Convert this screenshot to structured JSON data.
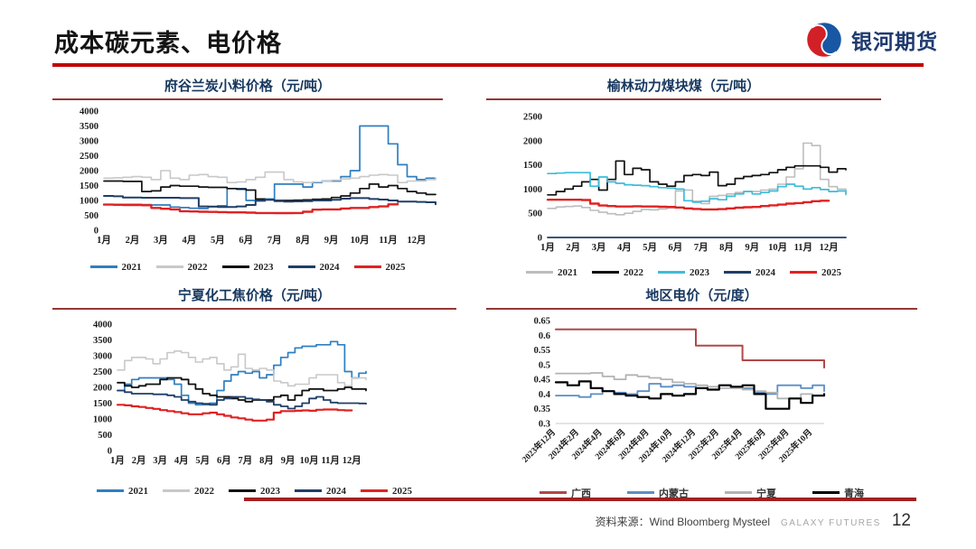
{
  "header": {
    "title": "成本碳元素、电价格"
  },
  "logo": {
    "text": "银河期货",
    "blue": "#1857a4",
    "red": "#d22027"
  },
  "footer": {
    "source_label": "资料来源：Wind Bloomberg Mysteel",
    "brand": "GALAXY FUTURES",
    "page_number": "12"
  },
  "chart_data": [
    {
      "type": "line",
      "title": "府谷兰炭小料价格（元/吨）",
      "ylabel": "元/吨",
      "ylim": [
        0,
        4000
      ],
      "ytick_values": [
        4000,
        3500,
        3000,
        2500,
        2000,
        1500,
        1000,
        500,
        0
      ],
      "ytick_labels": [
        "4000",
        "3500",
        "3000",
        "2500",
        "2000",
        "1500",
        "1000",
        "500",
        "0"
      ],
      "x_labels": [
        "1月",
        "2月",
        "3月",
        "4月",
        "5月",
        "6月",
        "7月",
        "8月",
        "9月",
        "10月",
        "11月",
        "12月"
      ],
      "x_count": 36,
      "baseline_color": null,
      "legend_position": "bottom",
      "grid": false,
      "series": [
        {
          "name": "2021",
          "color": "#2e7fc1",
          "width": 1.7,
          "values": [
            870,
            870,
            870,
            870,
            860,
            850,
            850,
            780,
            760,
            740,
            730,
            800,
            820,
            1400,
            1400,
            1000,
            980,
            1050,
            1550,
            1550,
            1550,
            1450,
            1600,
            1650,
            1650,
            1800,
            2000,
            3500,
            3500,
            3500,
            2900,
            2200,
            1800,
            1700,
            1750,
            1750
          ]
        },
        {
          "name": "2022",
          "color": "#c8c8c8",
          "width": 1.6,
          "values": [
            1750,
            1760,
            1780,
            1800,
            1780,
            1700,
            2000,
            1750,
            1700,
            1850,
            1870,
            1800,
            1780,
            1600,
            1620,
            1700,
            1780,
            1950,
            1950,
            1700,
            1620,
            1600,
            1620,
            1650,
            1680,
            1720,
            1750,
            1800,
            1850,
            1870,
            1850,
            1600,
            1650,
            1650,
            1700,
            1750
          ]
        },
        {
          "name": "2023",
          "color": "#111111",
          "width": 1.7,
          "values": [
            1650,
            1650,
            1640,
            1640,
            1300,
            1320,
            1450,
            1500,
            1480,
            1480,
            1450,
            1440,
            1440,
            1400,
            1380,
            1350,
            1050,
            1020,
            1000,
            1000,
            1010,
            1020,
            1040,
            1050,
            1100,
            1150,
            1250,
            1400,
            1550,
            1450,
            1500,
            1400,
            1300,
            1250,
            1200,
            1200
          ]
        },
        {
          "name": "2024",
          "color": "#1f3e66",
          "width": 2.0,
          "values": [
            1150,
            1140,
            1100,
            1100,
            1090,
            1090,
            1090,
            1090,
            1080,
            1080,
            800,
            790,
            780,
            780,
            800,
            850,
            1000,
            1020,
            980,
            960,
            970,
            980,
            1000,
            1000,
            1020,
            1060,
            1080,
            1080,
            1050,
            1030,
            1000,
            960,
            960,
            950,
            940,
            870
          ]
        },
        {
          "name": "2025",
          "color": "#e02222",
          "width": 2.4,
          "values": [
            860,
            855,
            850,
            850,
            840,
            750,
            720,
            700,
            640,
            630,
            620,
            615,
            610,
            600,
            600,
            590,
            580,
            580,
            575,
            575,
            580,
            620,
            690,
            700,
            700,
            730,
            750,
            750,
            780,
            800,
            870,
            890
          ]
        }
      ]
    },
    {
      "type": "line",
      "title": "榆林动力煤块煤（元/吨）",
      "ylabel": "元/吨",
      "ylim": [
        0,
        2500
      ],
      "ytick_values": [
        2500,
        2000,
        1500,
        1000,
        500,
        0
      ],
      "ytick_labels": [
        "2500",
        "2000",
        "1500",
        "1000",
        "500",
        "0"
      ],
      "x_labels": [
        "1月",
        "2月",
        "3月",
        "4月",
        "5月",
        "6月",
        "7月",
        "8月",
        "9月",
        "10月",
        "11月",
        "12月"
      ],
      "x_count": 36,
      "baseline_color": null,
      "legend_position": "bottom",
      "grid": false,
      "series": [
        {
          "name": "2021",
          "color": "#bdbdbd",
          "width": 1.6,
          "values": [
            600,
            630,
            640,
            650,
            620,
            560,
            520,
            490,
            470,
            500,
            540,
            580,
            570,
            590,
            610,
            960,
            980,
            750,
            700,
            850,
            870,
            900,
            930,
            950,
            950,
            980,
            1000,
            1100,
            1250,
            1420,
            1950,
            1900,
            1200,
            1050,
            1000,
            880
          ]
        },
        {
          "name": "2022",
          "color": "#111111",
          "width": 1.7,
          "values": [
            880,
            950,
            1000,
            1060,
            1150,
            1200,
            980,
            1200,
            1580,
            1300,
            1430,
            1400,
            1150,
            1100,
            1060,
            1150,
            1280,
            1300,
            1280,
            1350,
            1070,
            1100,
            1220,
            1260,
            1280,
            1300,
            1340,
            1400,
            1450,
            1480,
            1480,
            1480,
            1450,
            1350,
            1420,
            1400
          ]
        },
        {
          "name": "2023",
          "color": "#3fbcd9",
          "width": 1.7,
          "values": [
            1320,
            1330,
            1340,
            1340,
            1340,
            1060,
            1250,
            1150,
            1120,
            1090,
            1080,
            1070,
            1050,
            1030,
            1020,
            1000,
            760,
            730,
            750,
            800,
            780,
            850,
            900,
            950,
            900,
            930,
            960,
            1050,
            1100,
            1060,
            1000,
            1030,
            990,
            950,
            960,
            900
          ]
        },
        {
          "name": "2024",
          "color": "#1f3e66",
          "width": 1.8,
          "values": [
            0,
            0,
            0,
            0,
            0,
            0,
            0,
            0,
            0,
            0,
            0,
            0,
            0,
            0,
            0,
            0,
            0,
            0,
            0,
            0,
            0,
            0,
            0,
            0,
            0,
            0,
            0,
            0,
            0,
            0,
            0,
            0,
            0,
            0,
            0,
            0
          ]
        },
        {
          "name": "2025",
          "color": "#e02222",
          "width": 2.4,
          "values": [
            780,
            780,
            780,
            780,
            775,
            700,
            660,
            650,
            640,
            640,
            645,
            640,
            640,
            635,
            630,
            620,
            600,
            590,
            580,
            580,
            585,
            600,
            615,
            625,
            630,
            650,
            665,
            680,
            700,
            710,
            730,
            750,
            760,
            760
          ]
        }
      ]
    },
    {
      "type": "line",
      "title": "宁夏化工焦价格（元/吨）",
      "ylabel": "元/吨",
      "ylim": [
        0,
        4000
      ],
      "ytick_values": [
        4000,
        3500,
        3000,
        2500,
        2000,
        1500,
        1000,
        500,
        0
      ],
      "ytick_labels": [
        "4000",
        "3500",
        "3000",
        "2500",
        "2000",
        "1500",
        "1000",
        "500",
        "0"
      ],
      "x_labels": [
        "1月",
        "2月",
        "3月",
        "4月",
        "5月",
        "6月",
        "7月",
        "8月",
        "9月",
        "10月",
        "11月",
        "12月"
      ],
      "x_count": 36,
      "baseline_color": null,
      "legend_position": "bottom",
      "grid": false,
      "series": [
        {
          "name": "2021",
          "color": "#2e7fc1",
          "width": 1.7,
          "values": [
            1900,
            2100,
            2250,
            2300,
            2300,
            2300,
            2300,
            2250,
            2100,
            1750,
            1500,
            1450,
            1450,
            1500,
            1900,
            2200,
            2400,
            2500,
            2450,
            2500,
            2300,
            2400,
            2700,
            2950,
            3100,
            3250,
            3300,
            3300,
            3350,
            3350,
            3450,
            3350,
            2500,
            2300,
            2450,
            2500
          ]
        },
        {
          "name": "2022",
          "color": "#c8c8c8",
          "width": 1.6,
          "values": [
            2550,
            2850,
            2950,
            2950,
            2900,
            2750,
            2900,
            3100,
            3150,
            3100,
            2950,
            2800,
            2900,
            2950,
            2750,
            2550,
            2650,
            3050,
            2600,
            2550,
            2600,
            2550,
            2200,
            2150,
            2050,
            2100,
            2100,
            2300,
            2400,
            2400,
            2400,
            2150,
            2050,
            2300,
            2300,
            2250
          ]
        },
        {
          "name": "2023",
          "color": "#111111",
          "width": 1.8,
          "values": [
            2150,
            2050,
            2000,
            2050,
            2100,
            2100,
            2250,
            2300,
            2300,
            2250,
            2100,
            1950,
            1800,
            1750,
            1700,
            1700,
            1650,
            1600,
            1550,
            1600,
            1600,
            1600,
            1700,
            1750,
            1600,
            1750,
            1900,
            1950,
            1950,
            1900,
            1900,
            1950,
            2000,
            1950,
            1950,
            1900
          ]
        },
        {
          "name": "2024",
          "color": "#1f3e66",
          "width": 1.8,
          "values": [
            1900,
            1850,
            1800,
            1800,
            1800,
            1780,
            1780,
            1750,
            1700,
            1600,
            1550,
            1500,
            1480,
            1450,
            1600,
            1650,
            1700,
            1700,
            1650,
            1620,
            1600,
            1550,
            1450,
            1400,
            1330,
            1400,
            1500,
            1650,
            1700,
            1600,
            1520,
            1500,
            1500,
            1500,
            1490,
            1480
          ]
        },
        {
          "name": "2025",
          "color": "#e02222",
          "width": 2.2,
          "values": [
            1450,
            1430,
            1400,
            1380,
            1350,
            1320,
            1280,
            1250,
            1220,
            1180,
            1150,
            1150,
            1180,
            1200,
            1150,
            1100,
            1050,
            1020,
            980,
            950,
            950,
            980,
            1200,
            1250,
            1250,
            1260,
            1270,
            1260,
            1290,
            1300,
            1300,
            1280,
            1270,
            1270
          ]
        }
      ]
    },
    {
      "type": "line",
      "title": "地区电价（元/度）",
      "ylabel": "元/度",
      "ylim": [
        0.3,
        0.65
      ],
      "ytick_values": [
        0.65,
        0.6,
        0.55,
        0.5,
        0.45,
        0.4,
        0.35,
        0.3
      ],
      "ytick_labels": [
        "0.65",
        "0.6",
        "0.55",
        "0.5",
        "0.45",
        "0.4",
        "0.35",
        "0.3"
      ],
      "x_labels": [
        "2023年12月",
        "2024年2月",
        "2024年4月",
        "2024年6月",
        "2024年8月",
        "2024年10月",
        "2024年12月",
        "2025年2月",
        "2025年4月",
        "2025年6月",
        "2025年8月",
        "2025年10月"
      ],
      "x_count": 24,
      "baseline_color": "#c9c9c9",
      "legend_position": "bottom",
      "grid": false,
      "series": [
        {
          "name": "广西",
          "color": "#b04846",
          "width": 2.0,
          "values": [
            0.62,
            0.62,
            0.62,
            0.62,
            0.62,
            0.62,
            0.62,
            0.62,
            0.62,
            0.62,
            0.62,
            0.62,
            0.565,
            0.565,
            0.565,
            0.565,
            0.515,
            0.515,
            0.515,
            0.515,
            0.515,
            0.515,
            0.515,
            0.49
          ]
        },
        {
          "name": "内蒙古",
          "color": "#5b8ec4",
          "width": 1.8,
          "values": [
            0.395,
            0.395,
            0.39,
            0.4,
            0.41,
            0.405,
            0.4,
            0.41,
            0.435,
            0.425,
            0.43,
            0.425,
            0.42,
            0.415,
            0.43,
            0.425,
            0.42,
            0.405,
            0.4,
            0.43,
            0.43,
            0.42,
            0.43,
            0.41
          ]
        },
        {
          "name": "宁夏",
          "color": "#b3b3b3",
          "width": 1.8,
          "values": [
            0.47,
            0.47,
            0.47,
            0.472,
            0.46,
            0.45,
            0.465,
            0.46,
            0.455,
            0.45,
            0.44,
            0.435,
            0.43,
            0.425,
            0.42,
            0.42,
            0.415,
            0.41,
            0.405,
            0.385,
            0.385,
            0.4,
            0.395,
            0.4
          ]
        },
        {
          "name": "青海",
          "color": "#000000",
          "width": 2.2,
          "values": [
            0.44,
            0.43,
            0.443,
            0.42,
            0.41,
            0.4,
            0.395,
            0.39,
            0.385,
            0.4,
            0.395,
            0.4,
            0.42,
            0.415,
            0.43,
            0.425,
            0.43,
            0.4,
            0.35,
            0.35,
            0.385,
            0.37,
            0.395,
            0.4
          ]
        }
      ]
    }
  ]
}
